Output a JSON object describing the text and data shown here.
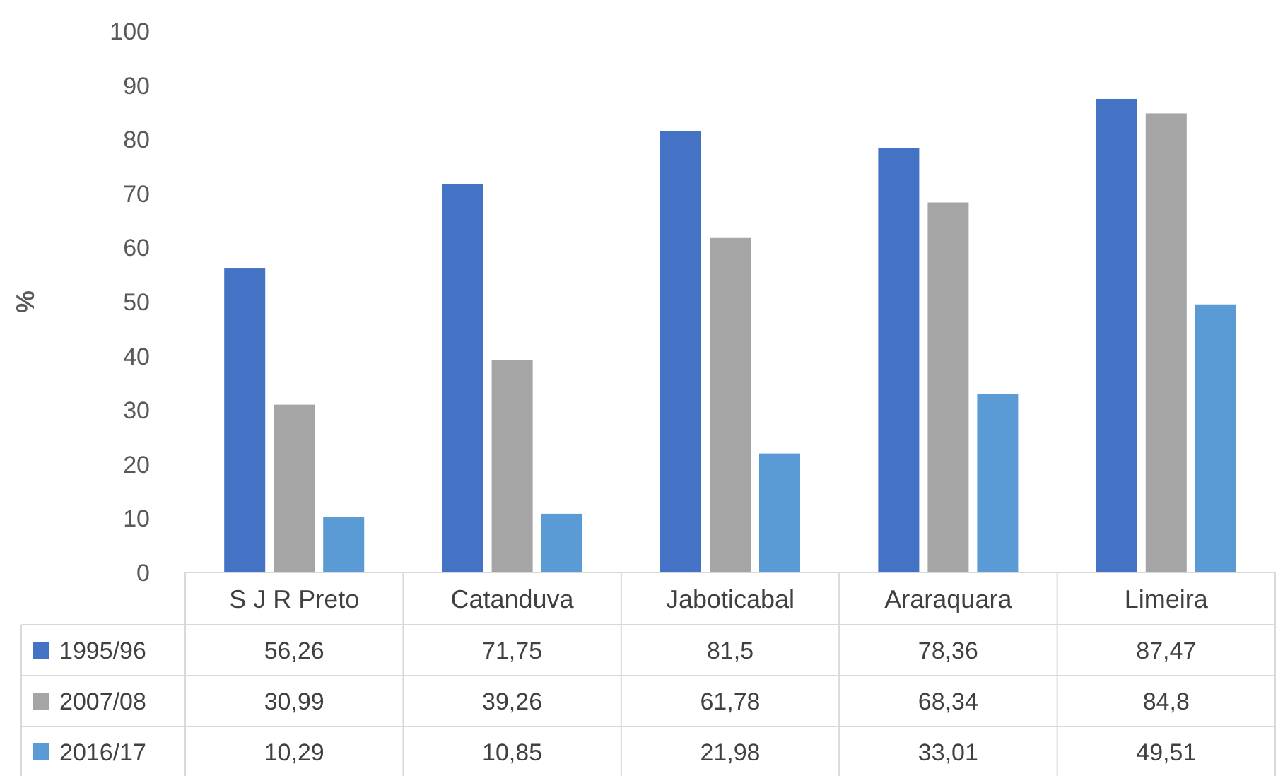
{
  "chart_data": {
    "type": "bar",
    "ylabel": "%",
    "categories": [
      "S J R Preto",
      "Catanduva",
      "Jaboticabal",
      "Araraquara",
      "Limeira"
    ],
    "series": [
      {
        "name": "1995/96",
        "color": "#4472c4",
        "values": [
          56.26,
          71.75,
          81.5,
          78.36,
          87.47
        ],
        "value_labels": [
          "56,26",
          "71,75",
          "81,5",
          "78,36",
          "87,47"
        ]
      },
      {
        "name": "2007/08",
        "color": "#a5a5a5",
        "values": [
          30.99,
          39.26,
          61.78,
          68.34,
          84.8
        ],
        "value_labels": [
          "30,99",
          "39,26",
          "61,78",
          "68,34",
          "84,8"
        ]
      },
      {
        "name": "2016/17",
        "color": "#5b9bd5",
        "values": [
          10.29,
          10.85,
          21.98,
          33.01,
          49.51
        ],
        "value_labels": [
          "10,29",
          "10,85",
          "21,98",
          "33,01",
          "49,51"
        ]
      }
    ],
    "ylim": [
      0,
      100
    ],
    "yticks": [
      0,
      10,
      20,
      30,
      40,
      50,
      60,
      70,
      80,
      90,
      100
    ],
    "grid": false,
    "legend": "bottom"
  }
}
